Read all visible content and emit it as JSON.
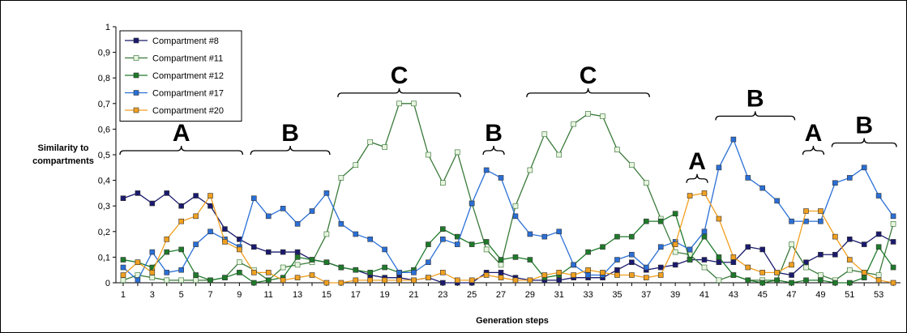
{
  "chart_data": {
    "type": "line",
    "title": "",
    "xlabel": "Generation steps",
    "ylabel": "Similarity to compartments",
    "ylim": [
      0,
      1
    ],
    "y_ticks": [
      "0",
      "0,1",
      "0,2",
      "0,3",
      "0,4",
      "0,5",
      "0,6",
      "0,7",
      "0,8",
      "0,9",
      "1"
    ],
    "x": [
      1,
      2,
      3,
      4,
      5,
      6,
      7,
      8,
      9,
      10,
      11,
      12,
      13,
      14,
      15,
      16,
      17,
      18,
      19,
      20,
      21,
      22,
      23,
      24,
      25,
      26,
      27,
      28,
      29,
      30,
      31,
      32,
      33,
      34,
      35,
      36,
      37,
      38,
      39,
      40,
      41,
      42,
      43,
      44,
      45,
      46,
      47,
      48,
      49,
      50,
      51,
      52,
      53,
      54
    ],
    "x_tick_labels": [
      "1",
      "3",
      "5",
      "7",
      "9",
      "11",
      "13",
      "15",
      "17",
      "19",
      "21",
      "23",
      "25",
      "27",
      "29",
      "31",
      "33",
      "35",
      "37",
      "39",
      "41",
      "43",
      "45",
      "47",
      "49",
      "51",
      "53"
    ],
    "grid": false,
    "legend_position": "top-left",
    "series": [
      {
        "name": "Compartment #8",
        "color": "#1a1a6e",
        "marker": "filled-square",
        "values": [
          0.33,
          0.35,
          0.31,
          0.35,
          0.3,
          0.34,
          0.3,
          0.21,
          0.17,
          0.14,
          0.12,
          0.12,
          0.12,
          0.09,
          0.08,
          0.06,
          0.05,
          0.03,
          0.02,
          0.02,
          0.01,
          0.02,
          0.0,
          0.0,
          0.0,
          0.04,
          0.04,
          0.02,
          0.01,
          0.01,
          0.01,
          0.02,
          0.02,
          0.02,
          0.05,
          0.08,
          0.05,
          0.06,
          0.07,
          0.09,
          0.09,
          0.08,
          0.08,
          0.14,
          0.13,
          0.04,
          0.03,
          0.08,
          0.11,
          0.11,
          0.17,
          0.15,
          0.19,
          0.16
        ]
      },
      {
        "name": "Compartment #11",
        "color": "#3a7a3a",
        "marker": "hollow-square",
        "values": [
          0.01,
          0.03,
          0.02,
          0.01,
          0.01,
          0.01,
          0.01,
          0.02,
          0.08,
          0.05,
          0.01,
          0.06,
          0.07,
          0.08,
          0.19,
          0.41,
          0.46,
          0.55,
          0.53,
          0.7,
          0.7,
          0.5,
          0.39,
          0.51,
          0.31,
          0.13,
          0.07,
          0.3,
          0.44,
          0.58,
          0.5,
          0.62,
          0.66,
          0.65,
          0.52,
          0.46,
          0.39,
          0.25,
          0.12,
          0.11,
          0.06,
          0.01,
          0.03,
          0.01,
          0.01,
          0.01,
          0.15,
          0.06,
          0.03,
          0.01,
          0.05,
          0.04,
          0.03,
          0.23
        ]
      },
      {
        "name": "Compartment #12",
        "color": "#1e7a2a",
        "marker": "filled-square",
        "values": [
          0.09,
          0.08,
          0.06,
          0.12,
          0.13,
          0.03,
          0.01,
          0.02,
          0.04,
          0.0,
          0.01,
          0.02,
          0.1,
          0.09,
          0.08,
          0.06,
          0.05,
          0.04,
          0.06,
          0.04,
          0.05,
          0.15,
          0.21,
          0.18,
          0.15,
          0.16,
          0.09,
          0.1,
          0.09,
          0.02,
          0.03,
          0.07,
          0.12,
          0.14,
          0.18,
          0.18,
          0.24,
          0.24,
          0.27,
          0.09,
          0.18,
          0.1,
          0.03,
          0.01,
          0.0,
          0.01,
          0.0,
          0.01,
          0.01,
          0.0,
          0.0,
          0.02,
          0.14,
          0.06
        ]
      },
      {
        "name": "Compartment #17",
        "color": "#2a6fd6",
        "marker": "filled-square",
        "values": [
          0.06,
          0.01,
          0.12,
          0.04,
          0.05,
          0.15,
          0.2,
          0.17,
          0.14,
          0.33,
          0.26,
          0.29,
          0.23,
          0.28,
          0.35,
          0.23,
          0.19,
          0.17,
          0.13,
          0.04,
          0.04,
          0.08,
          0.17,
          0.15,
          0.31,
          0.44,
          0.41,
          0.26,
          0.19,
          0.18,
          0.2,
          0.07,
          0.03,
          0.03,
          0.09,
          0.11,
          0.06,
          0.14,
          0.16,
          0.13,
          0.2,
          0.45,
          0.56,
          0.41,
          0.37,
          0.32,
          0.24,
          0.24,
          0.24,
          0.39,
          0.41,
          0.45,
          0.34,
          0.26
        ]
      },
      {
        "name": "Compartment #20",
        "color": "#f0a020",
        "marker": "filled-square",
        "values": [
          0.03,
          0.08,
          0.04,
          0.17,
          0.24,
          0.26,
          0.34,
          0.16,
          0.13,
          0.04,
          0.04,
          0.01,
          0.02,
          0.03,
          0.0,
          0.0,
          0.01,
          0.01,
          0.01,
          0.01,
          0.01,
          0.02,
          0.04,
          0.01,
          0.01,
          0.03,
          0.02,
          0.01,
          0.01,
          0.03,
          0.04,
          0.03,
          0.05,
          0.04,
          0.03,
          0.03,
          0.02,
          0.03,
          0.15,
          0.34,
          0.35,
          0.25,
          0.1,
          0.06,
          0.04,
          0.04,
          0.07,
          0.28,
          0.28,
          0.18,
          0.09,
          0.04,
          0.01,
          0.0
        ]
      }
    ],
    "annotations": [
      {
        "label": "A",
        "from_x": 1,
        "to_x": 9,
        "y": 0.5
      },
      {
        "label": "B",
        "from_x": 10,
        "to_x": 15,
        "y": 0.5
      },
      {
        "label": "C",
        "from_x": 16,
        "to_x": 24,
        "y": 0.725
      },
      {
        "label": "B",
        "from_x": 26,
        "to_x": 27,
        "y": 0.5
      },
      {
        "label": "C",
        "from_x": 29,
        "to_x": 37,
        "y": 0.725
      },
      {
        "label": "A",
        "from_x": 40,
        "to_x": 41,
        "y": 0.39
      },
      {
        "label": "B",
        "from_x": 42,
        "to_x": 47,
        "y": 0.635
      },
      {
        "label": "A",
        "from_x": 48,
        "to_x": 49,
        "y": 0.5
      },
      {
        "label": "B",
        "from_x": 50,
        "to_x": 54,
        "y": 0.53
      }
    ]
  }
}
